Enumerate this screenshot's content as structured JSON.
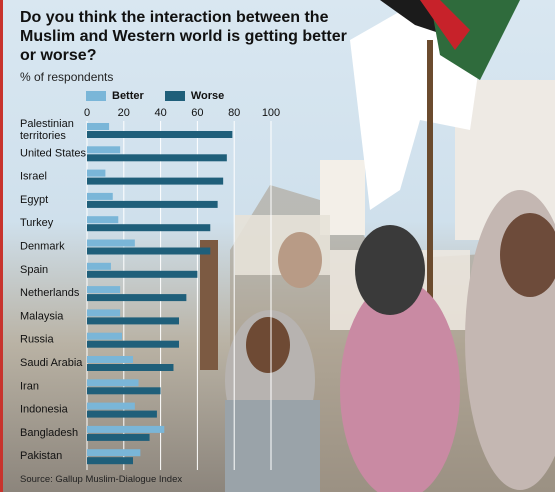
{
  "chart_data": {
    "type": "bar",
    "orientation": "horizontal",
    "title": "Do you think the interaction between the Muslim and Western world is getting better or worse?",
    "subtitle": "% of respondents",
    "categories": [
      "Palestinian territories",
      "United States",
      "Israel",
      "Egypt",
      "Turkey",
      "Denmark",
      "Spain",
      "Netherlands",
      "Malaysia",
      "Russia",
      "Saudi Arabia",
      "Iran",
      "Indonesia",
      "Bangladesh",
      "Pakistan"
    ],
    "series": [
      {
        "name": "Better",
        "color": "#7ab6d8",
        "values": [
          12,
          18,
          10,
          14,
          17,
          26,
          13,
          18,
          18,
          19,
          25,
          28,
          26,
          42,
          29
        ]
      },
      {
        "name": "Worse",
        "color": "#1f5f7a",
        "values": [
          79,
          76,
          74,
          71,
          67,
          67,
          60,
          54,
          50,
          50,
          47,
          40,
          38,
          34,
          25
        ]
      }
    ],
    "xticks": [
      0,
      20,
      40,
      60,
      80,
      100
    ],
    "xlim": [
      0,
      100
    ],
    "grid": true,
    "legend": "top",
    "source": "Source: Gallup Muslim-Dialogue Index"
  },
  "colors": {
    "accent": "#c8332d",
    "grid": "#ffffff",
    "text": "#111111"
  }
}
